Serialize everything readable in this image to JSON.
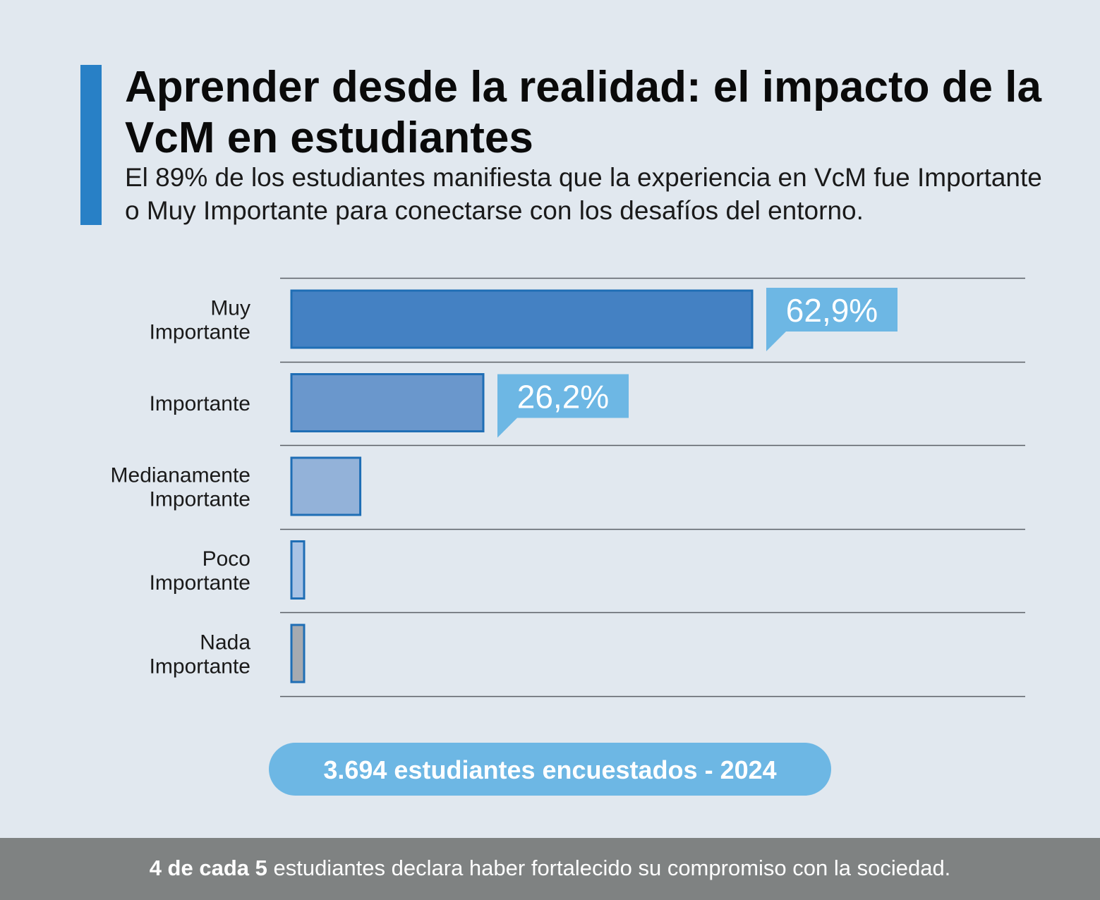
{
  "header": {
    "title": "Aprender desde la realidad: el impacto de la VcM en estudiantes",
    "subtitle": "El 89% de los estudiantes manifiesta que la experiencia en VcM fue Importante o Muy Importante para conectarse con los desafíos del entorno."
  },
  "chart_data": {
    "type": "bar",
    "orientation": "horizontal",
    "categories": [
      [
        "Muy",
        "Importante"
      ],
      [
        "Importante"
      ],
      [
        "Medianamente",
        "Importante"
      ],
      [
        "Poco",
        "Importante"
      ],
      [
        "Nada",
        "Importante"
      ]
    ],
    "values": [
      62.9,
      26.2,
      9.4,
      1.5,
      1.5
    ],
    "data_labels": [
      "62,9%",
      "26,2%",
      "",
      "",
      ""
    ],
    "colors": [
      "#4481c3",
      "#6a97cc",
      "#93b2d9",
      "#a9c3e5",
      "#a6aab0"
    ],
    "xlim": [
      0,
      100
    ],
    "grid": "horizontal separators",
    "legend": "none"
  },
  "badge": {
    "text": "3.694 estudiantes encuestados - 2024"
  },
  "footer": {
    "bold": "4 de cada 5",
    "text": " estudiantes declara haber fortalecido su compromiso con la sociedad."
  }
}
